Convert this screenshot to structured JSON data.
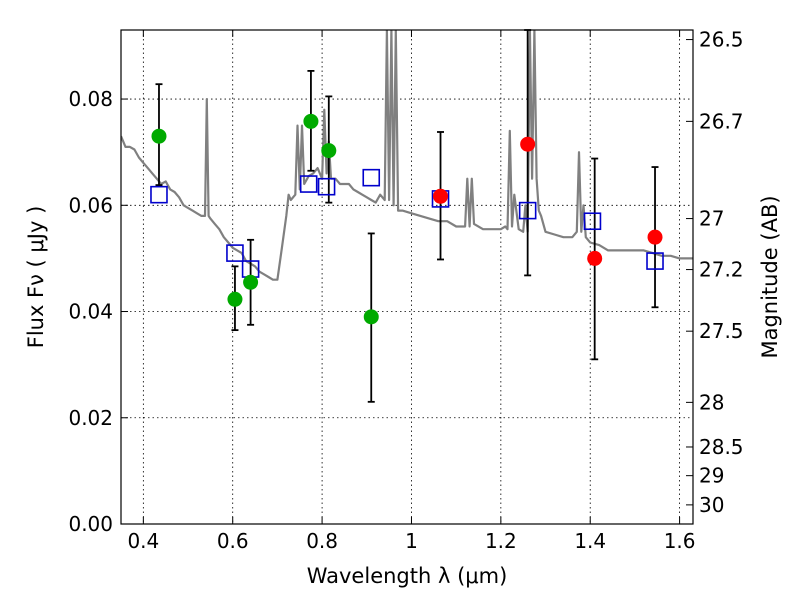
{
  "chart_data": {
    "type": "scatter",
    "xlabel": "Wavelength  λ (μm)",
    "ylabel": "Flux  Fν  ( μJy )",
    "y2label": "Magnitude (AB)",
    "xlim": [
      0.35,
      1.63
    ],
    "ylim": [
      0.0,
      0.093
    ],
    "grid": true,
    "x_ticks": [
      0.4,
      0.6,
      0.8,
      1.0,
      1.2,
      1.4,
      1.6
    ],
    "x_tick_labels": [
      "0.4",
      "0.6",
      "0.8",
      "1",
      "1.2",
      "1.4",
      "1.6"
    ],
    "y_ticks": [
      0.0,
      0.02,
      0.04,
      0.06,
      0.08
    ],
    "y_tick_labels": [
      "0.00",
      "0.02",
      "0.04",
      "0.06",
      "0.08"
    ],
    "y2_ticks": [
      {
        "label": "26.5",
        "flux": 0.0912
      },
      {
        "label": "26.7",
        "flux": 0.0758
      },
      {
        "label": "27",
        "flux": 0.0575
      },
      {
        "label": "27.2",
        "flux": 0.0479
      },
      {
        "label": "27.5",
        "flux": 0.0363
      },
      {
        "label": "28",
        "flux": 0.0229
      },
      {
        "label": "28.5",
        "flux": 0.0145
      },
      {
        "label": "29",
        "flux": 0.0091
      },
      {
        "label": "30",
        "flux": 0.0036
      }
    ],
    "model_spectrum": {
      "name": "model SED",
      "color": "#808080",
      "x": [
        0.35,
        0.36,
        0.37,
        0.38,
        0.39,
        0.4,
        0.41,
        0.42,
        0.43,
        0.44,
        0.45,
        0.46,
        0.47,
        0.48,
        0.49,
        0.5,
        0.51,
        0.52,
        0.53,
        0.538,
        0.542,
        0.546,
        0.55,
        0.56,
        0.57,
        0.58,
        0.59,
        0.6,
        0.61,
        0.62,
        0.63,
        0.64,
        0.65,
        0.66,
        0.67,
        0.68,
        0.69,
        0.7,
        0.71,
        0.72,
        0.725,
        0.73,
        0.74,
        0.745,
        0.75,
        0.755,
        0.76,
        0.77,
        0.78,
        0.79,
        0.8,
        0.805,
        0.81,
        0.815,
        0.82,
        0.83,
        0.84,
        0.85,
        0.86,
        0.87,
        0.88,
        0.89,
        0.9,
        0.91,
        0.92,
        0.93,
        0.94,
        0.945,
        0.95,
        0.955,
        0.96,
        0.965,
        0.97,
        0.98,
        1.0,
        1.02,
        1.04,
        1.06,
        1.08,
        1.1,
        1.12,
        1.125,
        1.13,
        1.135,
        1.14,
        1.16,
        1.18,
        1.2,
        1.21,
        1.215,
        1.22,
        1.225,
        1.23,
        1.24,
        1.25,
        1.255,
        1.26,
        1.265,
        1.27,
        1.275,
        1.28,
        1.285,
        1.29,
        1.3,
        1.32,
        1.34,
        1.36,
        1.37,
        1.375,
        1.38,
        1.385,
        1.39,
        1.4,
        1.42,
        1.44,
        1.46,
        1.48,
        1.5,
        1.52,
        1.54,
        1.56,
        1.58,
        1.6,
        1.63
      ],
      "y": [
        0.073,
        0.071,
        0.071,
        0.0705,
        0.069,
        0.068,
        0.067,
        0.066,
        0.065,
        0.064,
        0.0645,
        0.063,
        0.0625,
        0.0615,
        0.06,
        0.0595,
        0.059,
        0.0585,
        0.058,
        0.058,
        0.08,
        0.058,
        0.0575,
        0.0565,
        0.0555,
        0.054,
        0.053,
        0.052,
        0.0515,
        0.051,
        0.0495,
        0.049,
        0.0485,
        0.0475,
        0.047,
        0.0465,
        0.046,
        0.046,
        0.052,
        0.058,
        0.062,
        0.061,
        0.062,
        0.075,
        0.063,
        0.075,
        0.064,
        0.0655,
        0.066,
        0.067,
        0.065,
        0.078,
        0.066,
        0.072,
        0.065,
        0.065,
        0.064,
        0.064,
        0.064,
        0.063,
        0.0625,
        0.062,
        0.0615,
        0.061,
        0.0605,
        0.062,
        0.061,
        0.093,
        0.061,
        0.093,
        0.06,
        0.093,
        0.059,
        0.059,
        0.0585,
        0.058,
        0.0575,
        0.057,
        0.057,
        0.056,
        0.056,
        0.065,
        0.056,
        0.065,
        0.0565,
        0.0555,
        0.0555,
        0.0555,
        0.056,
        0.0555,
        0.074,
        0.056,
        0.062,
        0.0555,
        0.055,
        0.06,
        0.055,
        0.093,
        0.065,
        0.093,
        0.065,
        0.059,
        0.058,
        0.055,
        0.0545,
        0.054,
        0.054,
        0.055,
        0.07,
        0.055,
        0.06,
        0.054,
        0.053,
        0.0525,
        0.0515,
        0.0515,
        0.0515,
        0.0515,
        0.0515,
        0.051,
        0.0505,
        0.0505,
        0.05,
        0.05
      ]
    },
    "model_photometry": {
      "name": "model bandpass fluxes",
      "color": "#0000cc",
      "x": [
        0.435,
        0.605,
        0.64,
        0.77,
        0.81,
        0.91,
        1.065,
        1.26,
        1.405,
        1.545
      ],
      "y": [
        0.062,
        0.051,
        0.048,
        0.064,
        0.0635,
        0.0652,
        0.0612,
        0.059,
        0.057,
        0.0495
      ]
    },
    "series": [
      {
        "name": "green points",
        "color": "#00aa00",
        "x": [
          0.435,
          0.605,
          0.64,
          0.775,
          0.815,
          0.91
        ],
        "y": [
          0.073,
          0.0423,
          0.0455,
          0.0758,
          0.0703,
          0.039
        ],
        "yerr_low": [
          0.0638,
          0.0365,
          0.0375,
          0.0665,
          0.0605,
          0.023
        ],
        "yerr_high": [
          0.0828,
          0.0485,
          0.0535,
          0.0853,
          0.0805,
          0.0547
        ]
      },
      {
        "name": "red points",
        "color": "#ff0000",
        "x": [
          1.065,
          1.26,
          1.41,
          1.545
        ],
        "y": [
          0.0617,
          0.0715,
          0.05,
          0.054
        ],
        "yerr_low": [
          0.0498,
          0.0468,
          0.031,
          0.0408
        ],
        "yerr_high": [
          0.0738,
          0.093,
          0.0688,
          0.0672
        ]
      }
    ]
  }
}
